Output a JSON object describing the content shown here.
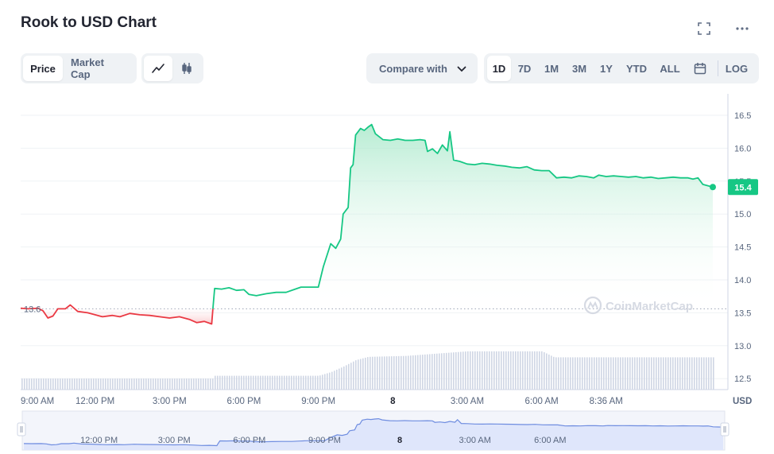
{
  "header": {
    "title": "Rook to USD Chart",
    "fullscreen_icon": "fullscreen-icon",
    "more_icon": "more-dots-icon"
  },
  "toolbar": {
    "metric_tabs": [
      {
        "label": "Price",
        "active": true
      },
      {
        "label": "Market Cap",
        "active": false
      }
    ],
    "chart_type_icons": [
      "line-chart-icon",
      "candlestick-icon"
    ],
    "compare_label": "Compare with",
    "ranges": [
      {
        "label": "1D",
        "active": true
      },
      {
        "label": "7D",
        "active": false
      },
      {
        "label": "1M",
        "active": false
      },
      {
        "label": "3M",
        "active": false
      },
      {
        "label": "1Y",
        "active": false
      },
      {
        "label": "YTD",
        "active": false
      },
      {
        "label": "ALL",
        "active": false
      }
    ],
    "calendar_icon": "calendar-icon",
    "log_label": "LOG"
  },
  "chart_data": {
    "type": "line",
    "title": "",
    "ylabel": "",
    "currency_label": "USD",
    "ylim": [
      12.3,
      16.7
    ],
    "y_ticks": [
      "16.5",
      "16.0",
      "15.5",
      "15.0",
      "14.5",
      "14.0",
      "13.5",
      "13.0",
      "12.5"
    ],
    "x_ticks": [
      "9:00 AM",
      "12:00 PM",
      "3:00 PM",
      "6:00 PM",
      "9:00 PM",
      "8",
      "3:00 AM",
      "6:00 AM",
      "8:36 AM"
    ],
    "x_tick_hours": [
      0,
      3,
      6,
      9,
      12,
      15,
      18,
      21,
      23.6
    ],
    "navigator_ticks": [
      "12:00 PM",
      "3:00 PM",
      "6:00 PM",
      "9:00 PM",
      "8",
      "3:00 AM",
      "6:00 AM"
    ],
    "navigator_tick_hours": [
      3,
      6,
      9,
      12,
      15,
      18,
      21
    ],
    "opening_price_label": "13.6",
    "opening_price": 13.56,
    "current_price_label": "15.4",
    "current_price": 15.41,
    "watermark": "CoinMarketCap",
    "colors": {
      "up": "#16c784",
      "down": "#ea3943",
      "fill_top": "#c9f2df",
      "volume": "#cfd6e4",
      "grid": "#eff2f5",
      "navigator_fill": "#dfe6fb",
      "navigator_line": "#6f8de0"
    },
    "series": [
      {
        "values": [
          [
            0.0,
            13.57
          ],
          [
            0.3,
            13.56
          ],
          [
            0.7,
            13.57
          ],
          [
            0.9,
            13.53
          ],
          [
            1.1,
            13.42
          ],
          [
            1.3,
            13.45
          ],
          [
            1.5,
            13.56
          ],
          [
            1.8,
            13.56
          ],
          [
            2.0,
            13.62
          ],
          [
            2.3,
            13.52
          ],
          [
            2.7,
            13.5
          ],
          [
            3.0,
            13.47
          ],
          [
            3.3,
            13.44
          ],
          [
            3.7,
            13.46
          ],
          [
            4.0,
            13.44
          ],
          [
            4.4,
            13.49
          ],
          [
            4.8,
            13.47
          ],
          [
            5.2,
            13.46
          ],
          [
            5.6,
            13.44
          ],
          [
            6.0,
            13.42
          ],
          [
            6.4,
            13.44
          ],
          [
            6.8,
            13.4
          ],
          [
            7.1,
            13.35
          ],
          [
            7.4,
            13.37
          ],
          [
            7.7,
            13.33
          ],
          [
            7.75,
            13.56
          ]
        ]
      },
      {
        "values": [
          [
            7.75,
            13.56
          ],
          [
            7.82,
            13.87
          ],
          [
            8.1,
            13.86
          ],
          [
            8.4,
            13.88
          ],
          [
            8.7,
            13.84
          ],
          [
            9.0,
            13.85
          ],
          [
            9.2,
            13.78
          ],
          [
            9.5,
            13.76
          ],
          [
            9.9,
            13.79
          ],
          [
            10.3,
            13.81
          ],
          [
            10.7,
            13.81
          ],
          [
            11.0,
            13.85
          ],
          [
            11.3,
            13.89
          ],
          [
            11.6,
            13.89
          ],
          [
            12.0,
            13.89
          ],
          [
            12.2,
            14.2
          ],
          [
            12.5,
            14.55
          ],
          [
            12.7,
            14.48
          ],
          [
            12.9,
            14.62
          ],
          [
            13.0,
            15.0
          ],
          [
            13.2,
            15.1
          ],
          [
            13.3,
            15.7
          ],
          [
            13.4,
            15.75
          ],
          [
            13.5,
            16.2
          ],
          [
            13.7,
            16.3
          ],
          [
            13.85,
            16.27
          ],
          [
            14.0,
            16.32
          ],
          [
            14.15,
            16.36
          ],
          [
            14.3,
            16.22
          ],
          [
            14.6,
            16.13
          ],
          [
            14.9,
            16.12
          ],
          [
            15.2,
            16.14
          ],
          [
            15.5,
            16.12
          ],
          [
            15.8,
            16.12
          ],
          [
            16.1,
            16.13
          ],
          [
            16.3,
            16.12
          ],
          [
            16.4,
            15.95
          ],
          [
            16.6,
            15.99
          ],
          [
            16.8,
            15.92
          ],
          [
            17.0,
            16.05
          ],
          [
            17.2,
            15.96
          ],
          [
            17.3,
            16.25
          ],
          [
            17.45,
            15.82
          ],
          [
            17.7,
            15.8
          ],
          [
            18.0,
            15.76
          ],
          [
            18.3,
            15.75
          ],
          [
            18.6,
            15.77
          ],
          [
            18.9,
            15.76
          ],
          [
            19.2,
            15.74
          ],
          [
            19.5,
            15.73
          ],
          [
            19.8,
            15.71
          ],
          [
            20.1,
            15.7
          ],
          [
            20.4,
            15.72
          ],
          [
            20.7,
            15.67
          ],
          [
            21.0,
            15.66
          ],
          [
            21.3,
            15.66
          ],
          [
            21.6,
            15.55
          ],
          [
            21.9,
            15.56
          ],
          [
            22.2,
            15.55
          ],
          [
            22.5,
            15.58
          ],
          [
            22.8,
            15.57
          ],
          [
            23.1,
            15.55
          ],
          [
            23.3,
            15.59
          ],
          [
            23.6,
            15.57
          ],
          [
            23.9,
            15.58
          ],
          [
            24.2,
            15.57
          ],
          [
            24.5,
            15.56
          ],
          [
            24.8,
            15.57
          ],
          [
            25.1,
            15.55
          ],
          [
            25.4,
            15.56
          ],
          [
            25.7,
            15.54
          ],
          [
            26.0,
            15.55
          ],
          [
            26.3,
            15.56
          ],
          [
            26.6,
            15.55
          ],
          [
            26.9,
            15.55
          ],
          [
            27.1,
            15.53
          ],
          [
            27.3,
            15.55
          ],
          [
            27.5,
            15.45
          ],
          [
            27.7,
            15.43
          ],
          [
            27.9,
            15.41
          ]
        ]
      }
    ],
    "volume": [
      [
        0,
        0.24
      ],
      [
        7.75,
        0.24
      ],
      [
        7.8,
        0.3
      ],
      [
        12.0,
        0.3
      ],
      [
        12.5,
        0.38
      ],
      [
        13.0,
        0.5
      ],
      [
        13.5,
        0.64
      ],
      [
        14.0,
        0.71
      ],
      [
        15.5,
        0.73
      ],
      [
        18.0,
        0.83
      ],
      [
        21.0,
        0.83
      ],
      [
        21.5,
        0.7
      ],
      [
        27.9,
        0.7
      ]
    ]
  }
}
